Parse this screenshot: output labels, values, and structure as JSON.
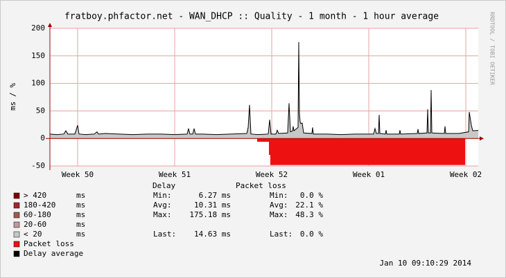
{
  "chart_data": {
    "type": "rrd",
    "title": "fratboy.phfactor.net - WAN_DHCP :: Quality - 1 month - 1 hour average",
    "y_label": "ms / %",
    "watermark": "RRDTOOL / TOBI OETIKER",
    "timestamp": "Jan 10 09:10:29 2014",
    "xlim": [
      0,
      30.9
    ],
    "xticks": [
      {
        "value": 2,
        "label": "Week 50"
      },
      {
        "value": 9,
        "label": "Week 51"
      },
      {
        "value": 16,
        "label": "Week 52"
      },
      {
        "value": 23,
        "label": "Week 01"
      },
      {
        "value": 30,
        "label": "Week 02"
      }
    ],
    "ylim": [
      -50,
      200
    ],
    "yticks": [
      -50,
      0,
      50,
      100,
      150,
      200
    ],
    "grid": true,
    "series": [
      {
        "name": "Delay average",
        "color": "#000000",
        "fill": "#c8c8c8",
        "x": [
          0,
          0.5,
          1.0,
          1.15,
          1.3,
          1.8,
          2.0,
          2.1,
          2.6,
          3.2,
          3.4,
          3.5,
          4.0,
          5,
          6,
          7,
          8,
          9,
          9.9,
          10.0,
          10.1,
          10.3,
          10.4,
          10.5,
          11,
          12,
          13,
          14.2,
          14.3,
          14.4,
          14.5,
          15,
          15.75,
          15.85,
          15.95,
          16.3,
          16.4,
          16.5,
          17.15,
          17.25,
          17.35,
          17.5,
          17.55,
          17.6,
          17.9,
          17.95,
          18.0,
          18.05,
          18.1,
          18.2,
          18.3,
          18.9,
          18.95,
          19.0,
          20,
          21,
          22,
          23.35,
          23.45,
          23.55,
          23.7,
          23.75,
          23.8,
          24.2,
          24.25,
          24.3,
          25.2,
          25.25,
          25.3,
          26.5,
          26.55,
          26.6,
          27.2,
          27.25,
          27.3,
          27.45,
          27.5,
          27.55,
          28.45,
          28.5,
          28.55,
          29.5,
          30.2,
          30.25,
          30.3,
          30.4,
          30.5,
          30.6,
          30.9
        ],
        "values": [
          8,
          7,
          8,
          14,
          8,
          8,
          24,
          8,
          7,
          8,
          12,
          8,
          9,
          8,
          7,
          8,
          8,
          7,
          8,
          18,
          8,
          8,
          18,
          8,
          8,
          7,
          8,
          9,
          20,
          61,
          8,
          7,
          8,
          34,
          8,
          8,
          15,
          9,
          10,
          64,
          12,
          14,
          22,
          14,
          20,
          175.18,
          46,
          30,
          27,
          28,
          10,
          9,
          20,
          8,
          8,
          7,
          8,
          8,
          18,
          9,
          9,
          43,
          9,
          8,
          15,
          8,
          8,
          15,
          8,
          9,
          17,
          9,
          10,
          53,
          10,
          10,
          88,
          10,
          9,
          22,
          9,
          9,
          12,
          48,
          40,
          24,
          14,
          14,
          14.63
        ]
      },
      {
        "name": "Packet loss",
        "color": "#ee1111",
        "x": [
          0,
          14.95,
          15.8,
          15.9,
          29.95,
          30.9
        ],
        "values": [
          0,
          -6,
          -30,
          -48.3,
          0,
          0
        ]
      }
    ],
    "legend": [
      {
        "label": "> 420",
        "unit": "ms",
        "color": "#800000"
      },
      {
        "label": "180-420",
        "unit": "ms",
        "color": "#a02828"
      },
      {
        "label": "60-180",
        "unit": "ms",
        "color": "#a05a50"
      },
      {
        "label": "20-60",
        "unit": "ms",
        "color": "#c09898"
      },
      {
        "label": "< 20",
        "unit": "ms",
        "color": "#c8c8c8"
      },
      {
        "label": "Packet loss",
        "color": "#ee1111"
      },
      {
        "label": "Delay average",
        "color": "#000000"
      }
    ],
    "stats": {
      "headers": [
        "Delay",
        "Packet loss"
      ],
      "rows": [
        {
          "label": "Min:",
          "delay": "6.27 ms",
          "loss_label": "Min:",
          "loss": "0.0 %"
        },
        {
          "label": "Avg:",
          "delay": "10.31 ms",
          "loss_label": "Avg:",
          "loss": "22.1 %"
        },
        {
          "label": "Max:",
          "delay": "175.18 ms",
          "loss_label": "Max:",
          "loss": "48.3 %"
        },
        {
          "label": "Last:",
          "delay": "14.63 ms",
          "loss_label": "Last:",
          "loss": "0.0 %"
        }
      ]
    }
  }
}
